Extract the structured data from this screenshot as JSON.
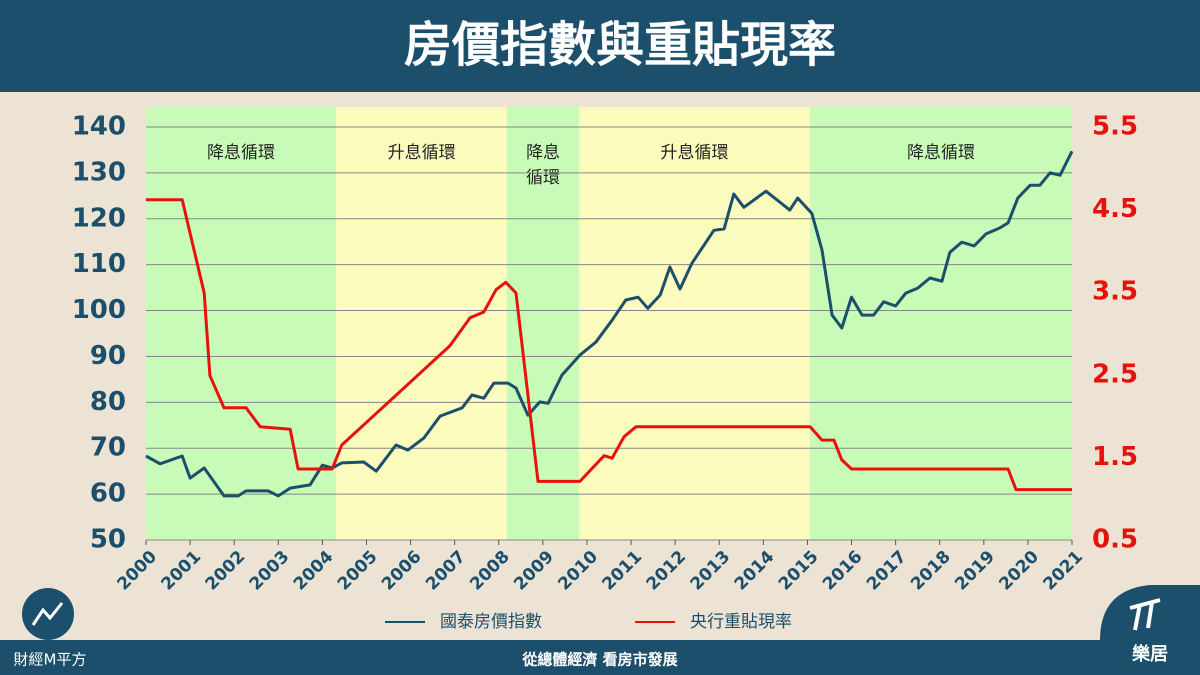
{
  "chart_data": {
    "type": "line",
    "title": "房價指數與重貼現率",
    "xlim": [
      2000,
      2021
    ],
    "xticks": [
      2000,
      2001,
      2002,
      2003,
      2004,
      2005,
      2006,
      2007,
      2008,
      2009,
      2010,
      2011,
      2012,
      2013,
      2014,
      2015,
      2016,
      2017,
      2018,
      2019,
      2020,
      2021
    ],
    "ylim": [
      50,
      140
    ],
    "yticks": [
      50,
      60,
      70,
      80,
      90,
      100,
      110,
      120,
      130,
      140
    ],
    "y2lim": [
      0.5,
      5.5
    ],
    "y2ticks": [
      0.5,
      1.5,
      2.5,
      3.5,
      4.5,
      5.5
    ],
    "regions": [
      {
        "label": [
          "降息循環"
        ],
        "start": 2000,
        "end": 2004.31,
        "color": "#c9fbb8"
      },
      {
        "label": [
          "升息循環"
        ],
        "start": 2004.31,
        "end": 2008.19,
        "color": "#fbfbbd"
      },
      {
        "label": [
          "降息",
          "循環"
        ],
        "start": 2008.19,
        "end": 2009.82,
        "color": "#c9fbb8"
      },
      {
        "label": [
          "升息循環"
        ],
        "start": 2009.82,
        "end": 2015.06,
        "color": "#fbfbbd"
      },
      {
        "label": [
          "降息循環"
        ],
        "start": 2015.06,
        "end": 2021,
        "color": "#c9fbb8"
      }
    ],
    "series": [
      {
        "name": "國泰房價指數",
        "color": "#1b4f6b",
        "axis": "y",
        "x": [
          2000,
          2000.32,
          2000.82,
          2001.0,
          2001.32,
          2001.77,
          2002.09,
          2002.27,
          2002.77,
          2003.0,
          2003.27,
          2003.72,
          2004.0,
          2004.22,
          2004.44,
          2004.94,
          2005.22,
          2005.67,
          2005.94,
          2006.3,
          2006.67,
          2007.17,
          2007.39,
          2007.66,
          2007.89,
          2008.21,
          2008.39,
          2008.66,
          2008.93,
          2009.12,
          2009.43,
          2009.84,
          2010.2,
          2010.57,
          2010.88,
          2011.16,
          2011.38,
          2011.66,
          2011.88,
          2012.11,
          2012.38,
          2012.88,
          2013.11,
          2013.33,
          2013.56,
          2014.06,
          2014.6,
          2014.78,
          2015.1,
          2015.33,
          2015.56,
          2015.78,
          2016.0,
          2016.24,
          2016.5,
          2016.73,
          2017.0,
          2017.23,
          2017.5,
          2017.78,
          2018.05,
          2018.23,
          2018.5,
          2018.78,
          2019.05,
          2019.36,
          2019.55,
          2019.77,
          2020.05,
          2020.27,
          2020.5,
          2020.73,
          2021.0
        ],
        "values": [
          68.3,
          66.6,
          68.3,
          63.5,
          65.7,
          59.6,
          59.6,
          60.7,
          60.7,
          59.6,
          61.3,
          62.0,
          66.3,
          65.7,
          66.8,
          67.0,
          65.0,
          70.7,
          69.6,
          72.2,
          77.0,
          78.8,
          81.6,
          80.9,
          84.2,
          84.2,
          83.1,
          77.2,
          80.1,
          79.8,
          85.9,
          90.3,
          93.1,
          97.9,
          102.3,
          102.9,
          100.5,
          103.4,
          109.5,
          104.7,
          110.3,
          117.5,
          117.8,
          125.4,
          122.5,
          126.0,
          121.9,
          124.5,
          121.2,
          113.2,
          99.0,
          96.2,
          102.9,
          99.0,
          99.0,
          101.9,
          101.0,
          103.8,
          104.9,
          107.1,
          106.4,
          112.7,
          114.9,
          114.1,
          116.7,
          118.0,
          119.1,
          124.5,
          127.3,
          127.3,
          130.0,
          129.5,
          134.7
        ]
      },
      {
        "name": "央行重貼現率",
        "color": "#e8120c",
        "axis": "y2",
        "x": [
          2000,
          2000.82,
          2001.32,
          2001.45,
          2001.77,
          2002.27,
          2002.59,
          2003.27,
          2003.45,
          2004.22,
          2004.44,
          2006.89,
          2007.35,
          2007.66,
          2007.94,
          2008.16,
          2008.39,
          2008.89,
          2009.84,
          2010.39,
          2010.57,
          2010.84,
          2011.11,
          2015.06,
          2015.33,
          2015.6,
          2015.78,
          2016.0,
          2019.55,
          2019.73,
          2021.0
        ],
        "values": [
          4.62,
          4.62,
          3.49,
          2.49,
          2.1,
          2.1,
          1.87,
          1.84,
          1.36,
          1.36,
          1.65,
          2.85,
          3.19,
          3.26,
          3.53,
          3.62,
          3.49,
          1.21,
          1.21,
          1.52,
          1.49,
          1.75,
          1.87,
          1.87,
          1.71,
          1.71,
          1.47,
          1.36,
          1.36,
          1.11,
          1.11
        ]
      }
    ]
  },
  "footer": {
    "brand_left": "財經M平方",
    "slogan": "從總體經濟 看房市發展",
    "brand_right": "樂居"
  }
}
